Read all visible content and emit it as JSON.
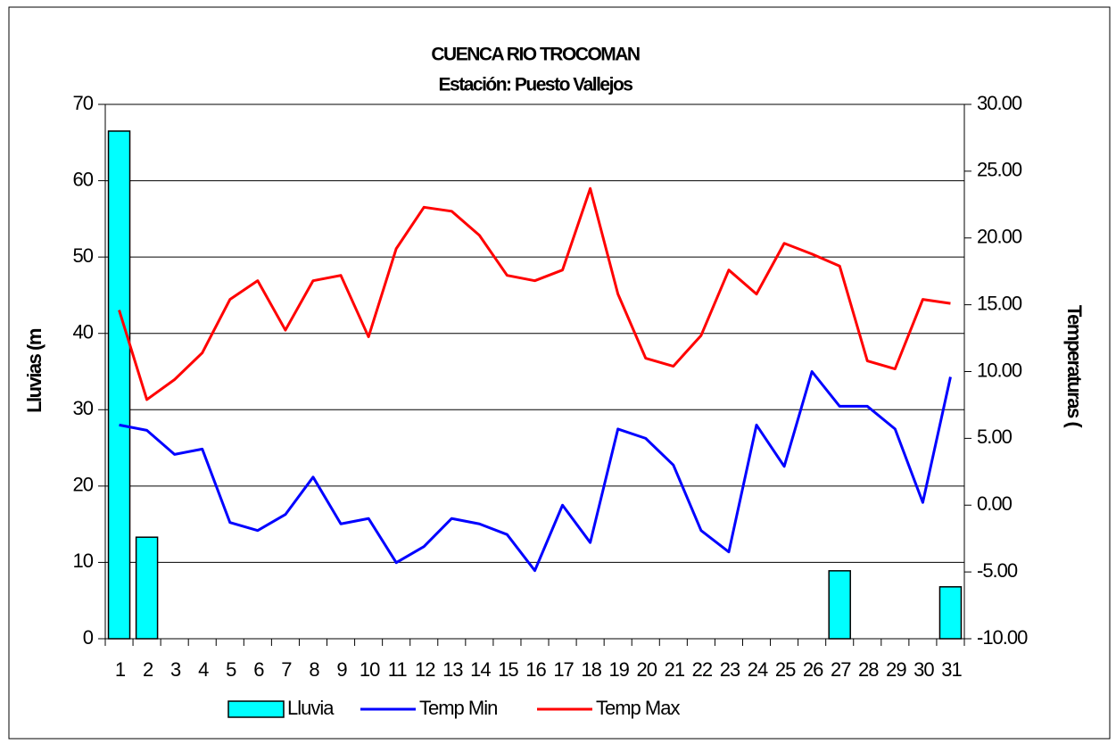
{
  "chart_data": {
    "type": "bar-line",
    "title": "CUENCA RIO TROCOMAN",
    "subtitle": "Estación: Puesto Vallejos",
    "ylabel": "Lluvias (m",
    "y2label": "Temperaturas (",
    "categories": [
      "1",
      "2",
      "3",
      "4",
      "5",
      "6",
      "7",
      "8",
      "9",
      "10",
      "11",
      "12",
      "13",
      "14",
      "15",
      "16",
      "17",
      "18",
      "19",
      "20",
      "21",
      "22",
      "23",
      "24",
      "25",
      "26",
      "27",
      "28",
      "29",
      "30",
      "31"
    ],
    "series": [
      {
        "name": "Lluvia",
        "type": "bar",
        "color": "#00ffff",
        "axis": "y",
        "values": [
          66.5,
          13.3,
          0,
          0,
          0,
          0,
          0,
          0,
          0,
          0,
          0,
          0,
          0,
          0,
          0,
          0,
          0,
          0,
          0,
          0,
          0,
          0,
          0,
          0,
          0,
          0,
          8.9,
          0,
          0,
          0,
          6.8
        ]
      },
      {
        "name": "Temp Min",
        "type": "line",
        "color": "#0000ff",
        "axis": "y2",
        "values": [
          6.0,
          5.6,
          3.8,
          4.2,
          -1.3,
          -1.9,
          -0.7,
          2.1,
          -1.4,
          -1.0,
          -4.3,
          -3.1,
          -1.0,
          -1.4,
          -2.2,
          -4.9,
          0.0,
          -2.8,
          5.7,
          5.0,
          3.0,
          -1.9,
          -3.5,
          6.0,
          2.9,
          10.0,
          7.4,
          7.4,
          5.7,
          0.2,
          9.6
        ]
      },
      {
        "name": "Temp Max",
        "type": "line",
        "color": "#ff0000",
        "axis": "y2",
        "values": [
          14.6,
          7.9,
          9.4,
          11.4,
          15.4,
          16.8,
          13.1,
          16.8,
          17.2,
          12.6,
          19.2,
          22.3,
          22.0,
          20.2,
          17.2,
          16.8,
          17.6,
          23.7,
          15.8,
          11.0,
          10.4,
          12.7,
          17.6,
          15.8,
          19.6,
          18.8,
          17.9,
          10.8,
          10.2,
          15.4,
          15.1
        ]
      }
    ],
    "ylim": [
      0,
      70
    ],
    "yticks": [
      0,
      10,
      20,
      30,
      40,
      50,
      60,
      70
    ],
    "y2lim": [
      -10,
      30
    ],
    "y2ticks": [
      {
        "value": -10,
        "label": "-10.00"
      },
      {
        "value": -5,
        "label": "-5.00"
      },
      {
        "value": 0,
        "label": "0.00"
      },
      {
        "value": 5,
        "label": "5.00"
      },
      {
        "value": 10,
        "label": "10.00"
      },
      {
        "value": 15,
        "label": "15.00"
      },
      {
        "value": 20,
        "label": "20.00"
      },
      {
        "value": 25,
        "label": "25.00"
      },
      {
        "value": 30,
        "label": "30.00"
      }
    ],
    "grid": true,
    "legend": "bottom"
  }
}
